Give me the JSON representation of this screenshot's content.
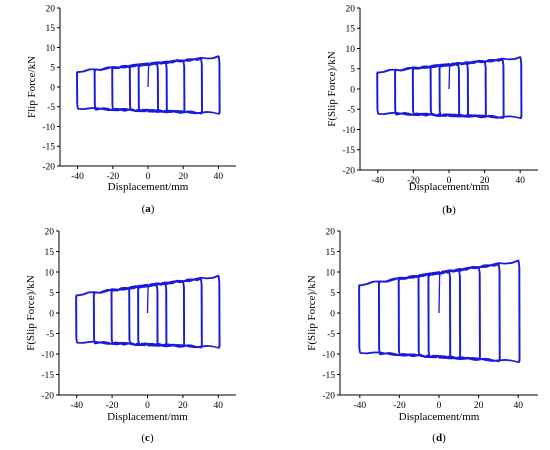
{
  "figure": {
    "panels": [
      {
        "id": "a",
        "caption_letter": "a"
      },
      {
        "id": "b",
        "caption_letter": "b"
      },
      {
        "id": "c",
        "caption_letter": "c"
      },
      {
        "id": "d",
        "caption_letter": "d"
      }
    ]
  },
  "colors": {
    "series": "#1a1adb",
    "axis": "#000000"
  },
  "chart_data": [
    {
      "type": "line",
      "xlabel": "Displacement/mm",
      "ylabel": "Flip Force/kN",
      "xlim": [
        -50,
        50
      ],
      "ylim": [
        -20,
        20
      ],
      "xticks": [
        -40,
        -20,
        0,
        20,
        40
      ],
      "yticks": [
        -20,
        -15,
        -10,
        -5,
        0,
        5,
        10,
        15,
        20
      ],
      "hysteresis": {
        "amplitudes": [
          5,
          10,
          20,
          30,
          40
        ],
        "lower_left": -5.3,
        "lower_right": -6.6,
        "upper_left": 4.0,
        "upper_right": 7.7
      }
    },
    {
      "type": "line",
      "xlabel": "Displacement/mm",
      "ylabel": "F(Slip Force)/kN",
      "xlim": [
        -50,
        50
      ],
      "ylim": [
        -20,
        20
      ],
      "xticks": [
        -40,
        -20,
        0,
        20,
        40
      ],
      "yticks": [
        -20,
        -15,
        -10,
        -5,
        0,
        5,
        10,
        15,
        20
      ],
      "hysteresis": {
        "amplitudes": [
          5,
          10,
          20,
          30,
          40
        ],
        "lower_left": -5.9,
        "lower_right": -7.0,
        "upper_left": 4.3,
        "upper_right": 7.8
      }
    },
    {
      "type": "line",
      "xlabel": "Displacement/mm",
      "ylabel": "F(Slip Force)/kN",
      "xlim": [
        -50,
        50
      ],
      "ylim": [
        -20,
        20
      ],
      "xticks": [
        -40,
        -20,
        0,
        20,
        40
      ],
      "yticks": [
        -20,
        -15,
        -10,
        -5,
        0,
        5,
        10,
        15,
        20
      ],
      "hysteresis": {
        "amplitudes": [
          5,
          10,
          20,
          30,
          40
        ],
        "lower_left": -7.0,
        "lower_right": -8.3,
        "upper_left": 4.5,
        "upper_right": 9.0
      }
    },
    {
      "type": "line",
      "xlabel": "Displacement/mm",
      "ylabel": "F(Slip Force)/kN",
      "xlim": [
        -50,
        50
      ],
      "ylim": [
        -20,
        20
      ],
      "xticks": [
        -40,
        -20,
        0,
        20,
        40
      ],
      "yticks": [
        -20,
        -15,
        -10,
        -5,
        0,
        5,
        10,
        15,
        20
      ],
      "hysteresis": {
        "amplitudes": [
          5,
          10,
          20,
          30,
          40
        ],
        "lower_left": -9.5,
        "lower_right": -11.8,
        "upper_left": 7.0,
        "upper_right": 12.7
      }
    }
  ]
}
